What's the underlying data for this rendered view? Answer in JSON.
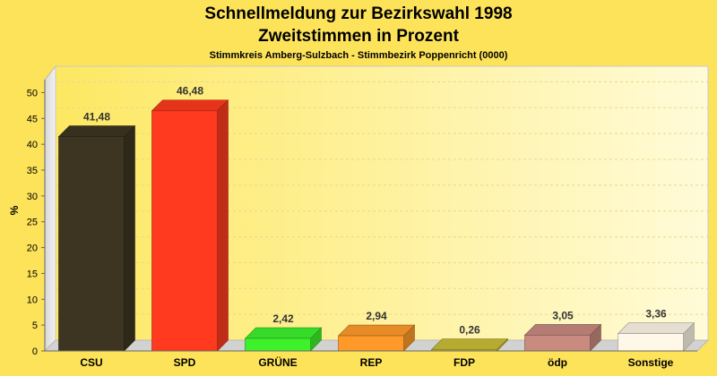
{
  "chart_data": {
    "type": "bar",
    "title": "Schnellmeldung zur Bezirkswahl 1998",
    "subtitle": "Zweitstimmen in Prozent",
    "caption": "Stimmkreis Amberg-Sulzbach - Stimmbezirk Poppenricht (0000)",
    "ylabel": "%",
    "xlabel": "",
    "ylim": [
      0,
      52.5
    ],
    "yticks": [
      0,
      5,
      10,
      15,
      20,
      25,
      30,
      35,
      40,
      45,
      50
    ],
    "grid": true,
    "categories": [
      "CSU",
      "SPD",
      "GRÜNE",
      "REP",
      "FDP",
      "ödp",
      "Sonstige"
    ],
    "values": [
      41.48,
      46.48,
      2.42,
      2.94,
      0.26,
      3.05,
      3.36
    ],
    "value_labels": [
      "41,48",
      "46,48",
      "2,42",
      "2,94",
      "0,26",
      "3,05",
      "3,36"
    ],
    "colors": [
      "#3d3521",
      "#ff3a1e",
      "#3df22c",
      "#ff9a2a",
      "#c9be35",
      "#c98a80",
      "#fff8e8"
    ]
  }
}
